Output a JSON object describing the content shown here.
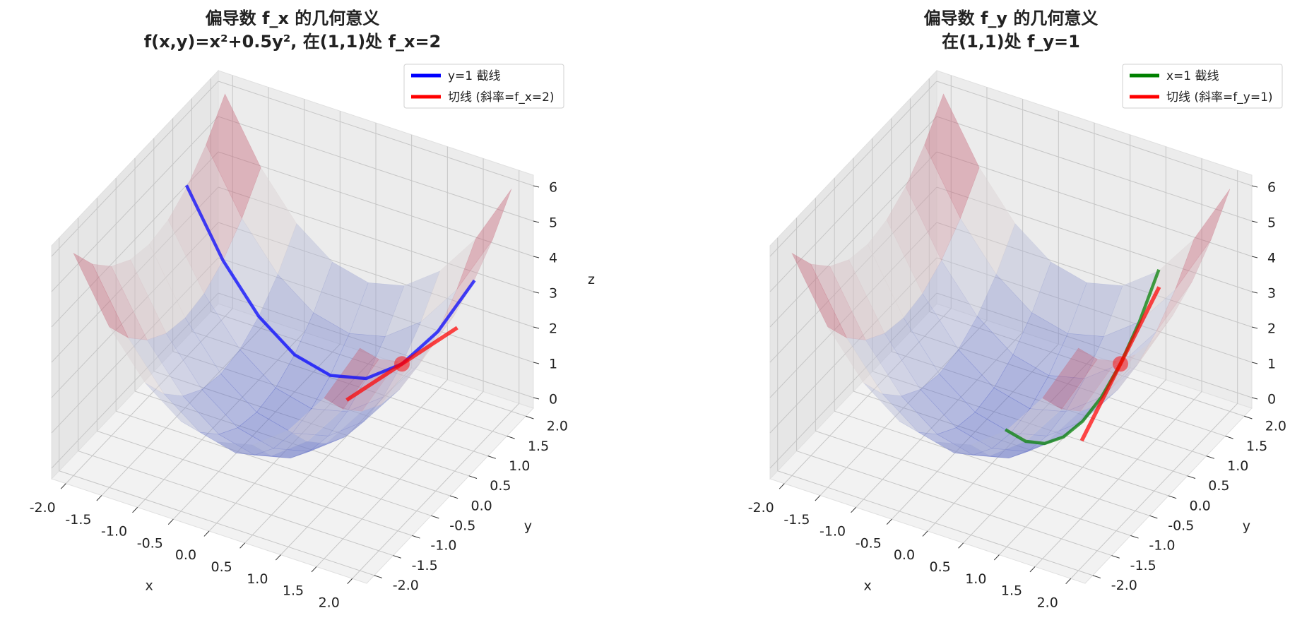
{
  "chart_data": [
    {
      "type": "surface3d",
      "title": "偏导数 f_x 的几何意义",
      "subtitle": "f(x,y)=x²+0.5y², 在(1,1)处 f_x=2",
      "xlabel": "x",
      "ylabel": "y",
      "zlabel": "z",
      "xlim": [
        -2.2,
        2.2
      ],
      "ylim": [
        -2.2,
        2.2
      ],
      "zlim": [
        -0.3,
        6.3
      ],
      "xticks": [
        {
          "value": -2,
          "label": "-2.0"
        },
        -1.5,
        {
          "value": -1,
          "label": "-1.0"
        },
        -0.5,
        {
          "value": 0,
          "label": "0.0"
        },
        0.5,
        {
          "value": 1,
          "label": "1.0"
        },
        1.5,
        {
          "value": 2,
          "label": "2.0"
        }
      ],
      "yticks": [
        {
          "value": -2,
          "label": "-2.0"
        },
        -1.5,
        {
          "value": -1,
          "label": "-1.0"
        },
        -0.5,
        {
          "value": 0,
          "label": "0.0"
        },
        0.5,
        {
          "value": 1,
          "label": "1.0"
        },
        1.5,
        {
          "value": 2,
          "label": "2.0"
        }
      ],
      "zticks": [
        0,
        1,
        2,
        3,
        4,
        5,
        6
      ],
      "grid": true,
      "legend": "upper right",
      "surface": {
        "x": [
          -2,
          -1.5,
          -1,
          -0.5,
          0,
          0.5,
          1,
          1.5,
          2
        ],
        "y": [
          -2,
          -1.5,
          -1,
          -0.5,
          0,
          0.5,
          1,
          1.5,
          2
        ],
        "z": [
          [
            6,
            4.25,
            3,
            2.25,
            2,
            2.25,
            3,
            4.25,
            6
          ],
          [
            5.125,
            3.375,
            2.125,
            1.375,
            1.125,
            1.375,
            2.125,
            3.375,
            5.125
          ],
          [
            4.5,
            2.75,
            1.5,
            0.75,
            0.5,
            0.75,
            1.5,
            2.75,
            4.5
          ],
          [
            4.125,
            2.375,
            1.125,
            0.375,
            0.125,
            0.375,
            1.125,
            2.375,
            4.125
          ],
          [
            4,
            2.25,
            1,
            0.25,
            0,
            0.25,
            1,
            2.25,
            4
          ],
          [
            4.125,
            2.375,
            1.125,
            0.375,
            0.125,
            0.375,
            1.125,
            2.375,
            4.125
          ],
          [
            4.5,
            2.75,
            1.5,
            0.75,
            0.5,
            0.75,
            1.5,
            2.75,
            4.5
          ],
          [
            5.125,
            3.375,
            2.125,
            1.375,
            1.125,
            1.375,
            2.125,
            3.375,
            5.125
          ],
          [
            6,
            4.25,
            3,
            2.25,
            2,
            2.25,
            3,
            4.25,
            6
          ]
        ]
      },
      "series": [
        {
          "name": "y=1 截线",
          "color": "#0000ff",
          "x": [
            -2,
            -1.5,
            -1,
            -0.5,
            0,
            0.5,
            1,
            1.5,
            2
          ],
          "y": [
            1,
            1,
            1,
            1,
            1,
            1,
            1,
            1,
            1
          ],
          "z": [
            4.5,
            2.75,
            1.5,
            0.75,
            0.5,
            0.75,
            1.5,
            2.75,
            4.5
          ]
        },
        {
          "name": "切线 (斜率=f_x=2)",
          "color": "#ff0000",
          "x": [
            0.25,
            1.75
          ],
          "y": [
            1,
            1
          ],
          "z": [
            0,
            3
          ]
        }
      ],
      "point": {
        "x": 1,
        "y": 1,
        "z": 1.5,
        "color": "#ff0000"
      }
    },
    {
      "type": "surface3d",
      "title": "偏导数 f_y 的几何意义",
      "subtitle": "在(1,1)处 f_y=1",
      "xlabel": "x",
      "ylabel": "y",
      "xlim": [
        -2.2,
        2.2
      ],
      "ylim": [
        -2.2,
        2.2
      ],
      "zlim": [
        -0.3,
        6.3
      ],
      "xticks": [
        {
          "value": -2,
          "label": "-2.0"
        },
        -1.5,
        {
          "value": -1,
          "label": "-1.0"
        },
        -0.5,
        {
          "value": 0,
          "label": "0.0"
        },
        0.5,
        {
          "value": 1,
          "label": "1.0"
        },
        1.5,
        {
          "value": 2,
          "label": "2.0"
        }
      ],
      "yticks": [
        {
          "value": -2,
          "label": "-2.0"
        },
        -1.5,
        {
          "value": -1,
          "label": "-1.0"
        },
        -0.5,
        {
          "value": 0,
          "label": "0.0"
        },
        0.5,
        {
          "value": 1,
          "label": "1.0"
        },
        1.5,
        {
          "value": 2,
          "label": "2.0"
        }
      ],
      "zticks": [
        0,
        1,
        2,
        3,
        4,
        5,
        6
      ],
      "grid": true,
      "legend": "upper right",
      "surface": {
        "x": [
          -2,
          -1.5,
          -1,
          -0.5,
          0,
          0.5,
          1,
          1.5,
          2
        ],
        "y": [
          -2,
          -1.5,
          -1,
          -0.5,
          0,
          0.5,
          1,
          1.5,
          2
        ],
        "z": [
          [
            6,
            4.25,
            3,
            2.25,
            2,
            2.25,
            3,
            4.25,
            6
          ],
          [
            5.125,
            3.375,
            2.125,
            1.375,
            1.125,
            1.375,
            2.125,
            3.375,
            5.125
          ],
          [
            4.5,
            2.75,
            1.5,
            0.75,
            0.5,
            0.75,
            1.5,
            2.75,
            4.5
          ],
          [
            4.125,
            2.375,
            1.125,
            0.375,
            0.125,
            0.375,
            1.125,
            2.375,
            4.125
          ],
          [
            4,
            2.25,
            1,
            0.25,
            0,
            0.25,
            1,
            2.25,
            4
          ],
          [
            4.125,
            2.375,
            1.125,
            0.375,
            0.125,
            0.375,
            1.125,
            2.375,
            4.125
          ],
          [
            4.5,
            2.75,
            1.5,
            0.75,
            0.5,
            0.75,
            1.5,
            2.75,
            4.5
          ],
          [
            5.125,
            3.375,
            2.125,
            1.375,
            1.125,
            1.375,
            2.125,
            3.375,
            5.125
          ],
          [
            6,
            4.25,
            3,
            2.25,
            2,
            2.25,
            3,
            4.25,
            6
          ]
        ]
      },
      "series": [
        {
          "name": "x=1 截线",
          "color": "#008000",
          "x": [
            1,
            1,
            1,
            1,
            1,
            1,
            1,
            1,
            1
          ],
          "y": [
            -2,
            -1.5,
            -1,
            -0.5,
            0,
            0.5,
            1,
            1.5,
            2
          ],
          "z": [
            3,
            2.125,
            1.5,
            1.125,
            1,
            1.125,
            1.5,
            2.125,
            3
          ]
        },
        {
          "name": "切线 (斜率=f_y=1)",
          "color": "#ff0000",
          "x": [
            1,
            1
          ],
          "y": [
            0,
            2
          ],
          "z": [
            0.5,
            2.5
          ]
        }
      ],
      "point": {
        "x": 1,
        "y": 1,
        "z": 1.5,
        "color": "#ff0000"
      }
    }
  ]
}
